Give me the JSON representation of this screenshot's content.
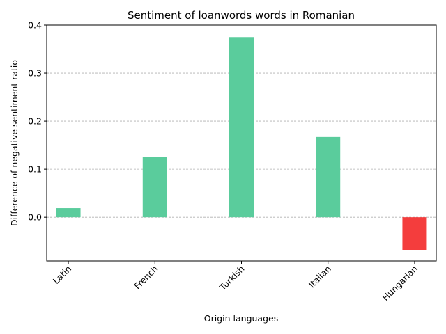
{
  "chart_data": {
    "type": "bar",
    "title": "Sentiment of loanwords words in Romanian",
    "xlabel": "Origin languages",
    "ylabel": "Difference of negative sentiment ratio",
    "categories": [
      "Latin",
      "French",
      "Turkish",
      "Italian",
      "Hungarian"
    ],
    "values": [
      0.019,
      0.126,
      0.375,
      0.167,
      -0.068
    ],
    "ylim": [
      -0.091,
      0.4
    ],
    "yticks": [
      0.0,
      0.1,
      0.2,
      0.3,
      0.4
    ],
    "ytick_labels": [
      "0.0",
      "0.1",
      "0.2",
      "0.3",
      "0.4"
    ],
    "grid": "horizontal dashed",
    "colors": {
      "positive": "#5ACC9C",
      "negative": "#F43D3D",
      "grid": "#b0b0b0",
      "axis": "#000000"
    }
  }
}
